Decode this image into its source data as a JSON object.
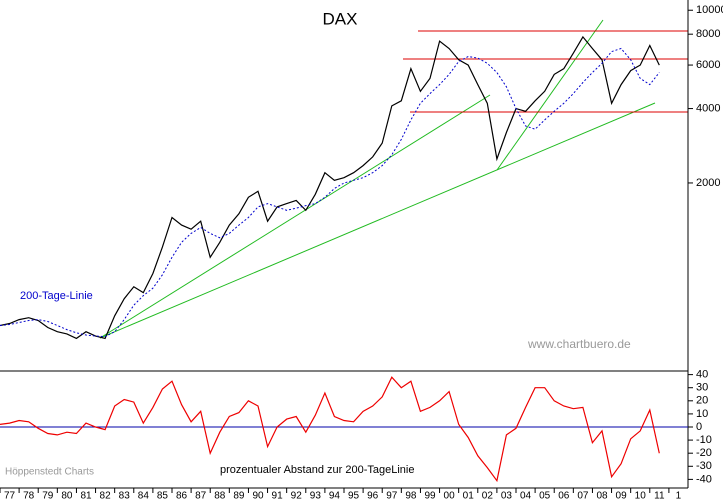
{
  "chart_data": [
    {
      "type": "line",
      "title": "DAX",
      "log_scale": true,
      "annotations": [
        "www.chartbuero.de",
        "Höppenstedt Charts"
      ],
      "x": [
        1977,
        1977.5,
        1978,
        1978.5,
        1979,
        1979.5,
        1980,
        1980.5,
        1981,
        1981.5,
        1982,
        1982.5,
        1983,
        1983.5,
        1984,
        1984.5,
        1985,
        1985.5,
        1986,
        1986.5,
        1987,
        1987.5,
        1988,
        1988.5,
        1989,
        1989.5,
        1990,
        1990.5,
        1991,
        1991.5,
        1992,
        1992.5,
        1993,
        1993.5,
        1994,
        1994.5,
        1995,
        1995.5,
        1996,
        1996.5,
        1997,
        1997.5,
        1998,
        1998.5,
        1999,
        1999.5,
        2000,
        2000.5,
        2001,
        2001.5,
        2002,
        2002.5,
        2003,
        2003.5,
        2004,
        2004.5,
        2005,
        2005.5,
        2006,
        2006.5,
        2007,
        2007.5,
        2008,
        2008.5,
        2009,
        2009.5,
        2010,
        2010.5,
        2011,
        2011.5
      ],
      "xlim": [
        1977,
        2013
      ],
      "ylim": [
        350,
        10500
      ],
      "yticks": [
        2000,
        4000,
        6000,
        8000,
        10000
      ],
      "series": [
        {
          "color": "#000000",
          "values": [
            530,
            540,
            560,
            570,
            555,
            520,
            500,
            490,
            470,
            500,
            480,
            470,
            580,
            680,
            760,
            720,
            860,
            1100,
            1450,
            1350,
            1300,
            1400,
            1000,
            1150,
            1350,
            1500,
            1750,
            1850,
            1400,
            1600,
            1650,
            1700,
            1550,
            1800,
            2200,
            2050,
            2100,
            2200,
            2350,
            2550,
            2900,
            4100,
            4300,
            5800,
            4700,
            5300,
            7500,
            7000,
            6300,
            6000,
            5000,
            4200,
            2500,
            3200,
            4000,
            3900,
            4300,
            4700,
            5500,
            5800,
            6700,
            7800,
            7000,
            6300,
            4200,
            5000,
            5700,
            6000,
            7200,
            6000
          ]
        },
        {
          "name": "200-Tage-Linie",
          "color": "#0000cc",
          "dashed": true,
          "values": [
            530,
            535,
            545,
            555,
            560,
            550,
            530,
            510,
            495,
            485,
            480,
            478,
            500,
            560,
            640,
            700,
            750,
            850,
            1000,
            1150,
            1250,
            1320,
            1250,
            1200,
            1250,
            1350,
            1450,
            1600,
            1650,
            1600,
            1550,
            1580,
            1620,
            1650,
            1750,
            1900,
            2000,
            2050,
            2100,
            2200,
            2350,
            2600,
            3000,
            3600,
            4200,
            4600,
            5000,
            5500,
            6200,
            6500,
            6400,
            6100,
            5600,
            4900,
            4000,
            3400,
            3300,
            3600,
            3900,
            4200,
            4600,
            5100,
            5600,
            6100,
            6800,
            7000,
            6300,
            5300,
            5000,
            5600
          ]
        }
      ]
    },
    {
      "type": "line",
      "title": "prozentualer Abstand zur 200-TageLinie",
      "x": [
        1977,
        1977.5,
        1978,
        1978.5,
        1979,
        1979.5,
        1980,
        1980.5,
        1981,
        1981.5,
        1982,
        1982.5,
        1983,
        1983.5,
        1984,
        1984.5,
        1985,
        1985.5,
        1986,
        1986.5,
        1987,
        1987.5,
        1988,
        1988.5,
        1989,
        1989.5,
        1990,
        1990.5,
        1991,
        1991.5,
        1992,
        1992.5,
        1993,
        1993.5,
        1994,
        1994.5,
        1995,
        1995.5,
        1996,
        1996.5,
        1997,
        1997.5,
        1998,
        1998.5,
        1999,
        1999.5,
        2000,
        2000.5,
        2001,
        2001.5,
        2002,
        2002.5,
        2003,
        2003.5,
        2004,
        2004.5,
        2005,
        2005.5,
        2006,
        2006.5,
        2007,
        2007.5,
        2008,
        2008.5,
        2009,
        2009.5,
        2010,
        2010.5,
        2011,
        2011.5
      ],
      "xlim": [
        1977,
        2013
      ],
      "xticks": [
        {
          "value": 1977.5,
          "label": "77"
        },
        {
          "value": 1978.5,
          "label": "78"
        },
        {
          "value": 1979.5,
          "label": "79"
        },
        {
          "value": 1980.5,
          "label": "80"
        },
        {
          "value": 1981.5,
          "label": "81"
        },
        {
          "value": 1982.5,
          "label": "82"
        },
        {
          "value": 1983.5,
          "label": "83"
        },
        {
          "value": 1984.5,
          "label": "84"
        },
        {
          "value": 1985.5,
          "label": "85"
        },
        {
          "value": 1986.5,
          "label": "86"
        },
        {
          "value": 1987.5,
          "label": "87"
        },
        {
          "value": 1988.5,
          "label": "88"
        },
        {
          "value": 1989.5,
          "label": "89"
        },
        {
          "value": 1990.5,
          "label": "90"
        },
        {
          "value": 1991.5,
          "label": "91"
        },
        {
          "value": 1992.5,
          "label": "92"
        },
        {
          "value": 1993.5,
          "label": "93"
        },
        {
          "value": 1994.5,
          "label": "94"
        },
        {
          "value": 1995.5,
          "label": "95"
        },
        {
          "value": 1996.5,
          "label": "96"
        },
        {
          "value": 1997.5,
          "label": "97"
        },
        {
          "value": 1998.5,
          "label": "98"
        },
        {
          "value": 1999.5,
          "label": "99"
        },
        {
          "value": 2000.5,
          "label": "00"
        },
        {
          "value": 2001.5,
          "label": "01"
        },
        {
          "value": 2002.5,
          "label": "02"
        },
        {
          "value": 2003.5,
          "label": "03"
        },
        {
          "value": 2004.5,
          "label": "04"
        },
        {
          "value": 2005.5,
          "label": "05"
        },
        {
          "value": 2006.5,
          "label": "06"
        },
        {
          "value": 2007.5,
          "label": "07"
        },
        {
          "value": 2008.5,
          "label": "08"
        },
        {
          "value": 2009.5,
          "label": "09"
        },
        {
          "value": 2010.5,
          "label": "10"
        },
        {
          "value": 2011.5,
          "label": "11"
        },
        {
          "value": 2012.5,
          "label": "1"
        }
      ],
      "ylim": [
        -42,
        42
      ],
      "yticks": [
        -40,
        -30,
        -20,
        -10,
        0,
        10,
        20,
        30,
        40
      ],
      "zero_line_color": "#0000aa",
      "series": [
        {
          "color": "#ee0000",
          "values": [
            2,
            3,
            5,
            4,
            -1,
            -5,
            -6,
            -4,
            -5,
            3,
            0,
            -2,
            16,
            21,
            19,
            3,
            15,
            29,
            35,
            17,
            4,
            12,
            -20,
            -4,
            8,
            11,
            20,
            16,
            -15,
            0,
            6,
            8,
            -4,
            9,
            26,
            8,
            5,
            4,
            12,
            16,
            23,
            38,
            30,
            35,
            12,
            15,
            20,
            27,
            2,
            -8,
            -22,
            -31,
            -41,
            -6,
            -1,
            15,
            30,
            30,
            20,
            16,
            14,
            15,
            -12,
            -3,
            -38,
            -28,
            -9,
            -3,
            13,
            -20
          ]
        }
      ]
    }
  ]
}
